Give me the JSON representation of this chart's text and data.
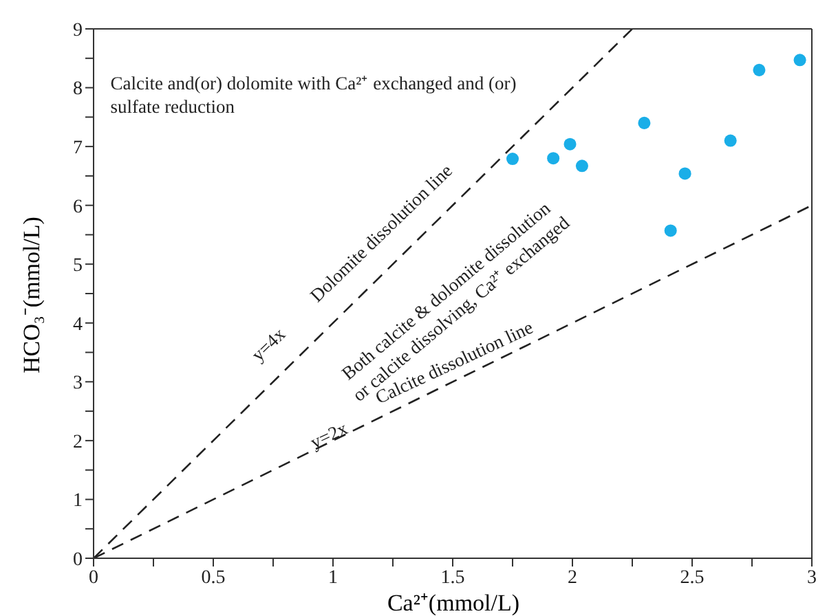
{
  "chart_data": {
    "type": "scatter",
    "xlabel": "Ca²⁺(mmol/L)",
    "ylabel": "HCO₃⁻(mmol/L)",
    "xlim": [
      0,
      3
    ],
    "ylim": [
      0,
      9
    ],
    "xticks": [
      0,
      {
        "value": 0.25,
        "label": null
      },
      0.5,
      {
        "value": 0.75,
        "label": null
      },
      1,
      {
        "value": 1.25,
        "label": null
      },
      1.5,
      {
        "value": 1.75,
        "label": null
      },
      2,
      {
        "value": 2.25,
        "label": null
      },
      2.5,
      {
        "value": 2.75,
        "label": null
      },
      3
    ],
    "yticks": [
      0,
      {
        "value": 0.5,
        "label": null
      },
      1,
      {
        "value": 1.5,
        "label": null
      },
      2,
      {
        "value": 2.5,
        "label": null
      },
      3,
      {
        "value": 3.5,
        "label": null
      },
      4,
      {
        "value": 4.5,
        "label": null
      },
      5,
      {
        "value": 5.5,
        "label": null
      },
      6,
      {
        "value": 6.5,
        "label": null
      },
      7,
      {
        "value": 7.5,
        "label": null
      },
      8,
      {
        "value": 8.5,
        "label": null
      },
      9
    ],
    "marker": "circle",
    "grid": false,
    "legend": false,
    "series": [
      {
        "color": "#1aaee8",
        "x": [
          1.75,
          1.92,
          1.99,
          2.04,
          2.3,
          2.47,
          2.41,
          2.66,
          2.78,
          2.95
        ],
        "values": [
          6.79,
          6.8,
          7.04,
          6.67,
          7.4,
          6.54,
          5.57,
          7.1,
          8.3,
          8.47
        ]
      },
      {
        "type": "line",
        "name": "Dolomite dissolution line",
        "color": "#222222",
        "line_style": "dashed",
        "marker": "none",
        "x": [
          0,
          2.25
        ],
        "values": [
          0,
          9
        ]
      },
      {
        "type": "line",
        "name": "Calcite dissolution line",
        "color": "#222222",
        "line_style": "dashed",
        "marker": "none",
        "x": [
          0,
          3
        ],
        "values": [
          0,
          6
        ]
      }
    ],
    "annotations": [
      "Calcite and(or) dolomite with Ca²⁺ exchanged and (or) sulfate reduction",
      "y=4x",
      "Both calcite & dolomite dissolution or calcite dissolving, Ca²⁺ exchanged",
      "y=2x"
    ]
  }
}
